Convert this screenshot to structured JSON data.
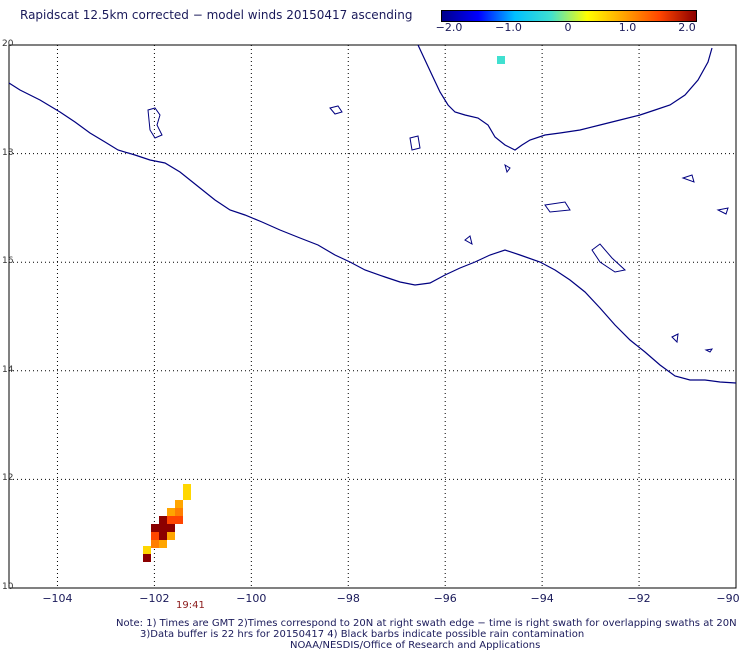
{
  "title": "Rapidscat 12.5km corrected − model winds 20150417 ascending",
  "colorbar": {
    "colors": [
      "#00008b",
      "#0000ff",
      "#00bfff",
      "#40e0d0",
      "#ffff00",
      "#ffa500",
      "#ff4500",
      "#8b0000"
    ],
    "ticks": [
      "−2.0",
      "−1.0",
      "0",
      "1.0",
      "2.0"
    ],
    "range": [
      -2.0,
      2.0
    ]
  },
  "axes": {
    "x_ticks": [
      "−104",
      "−102",
      "−100",
      "−98",
      "−96",
      "−94",
      "−92",
      "−90"
    ],
    "y_ticks": [
      "20",
      "18",
      "16",
      "14",
      "12",
      "10"
    ],
    "xlim": [
      -105,
      -90
    ],
    "ylim": [
      10,
      20
    ]
  },
  "time_label": "19:41",
  "notes": [
    "Note: 1) Times are GMT 2)Times correspond to 20N at right swath edge − time is right swath for overlapping swaths at 20N",
    "3)Data buffer is 22 hrs for 20150417 4) Black barbs indicate possible rain contamination",
    "NOAA/NESDIS/Office of Research and Applications"
  ],
  "map": {
    "coast_color": "#000080",
    "grid": true
  }
}
